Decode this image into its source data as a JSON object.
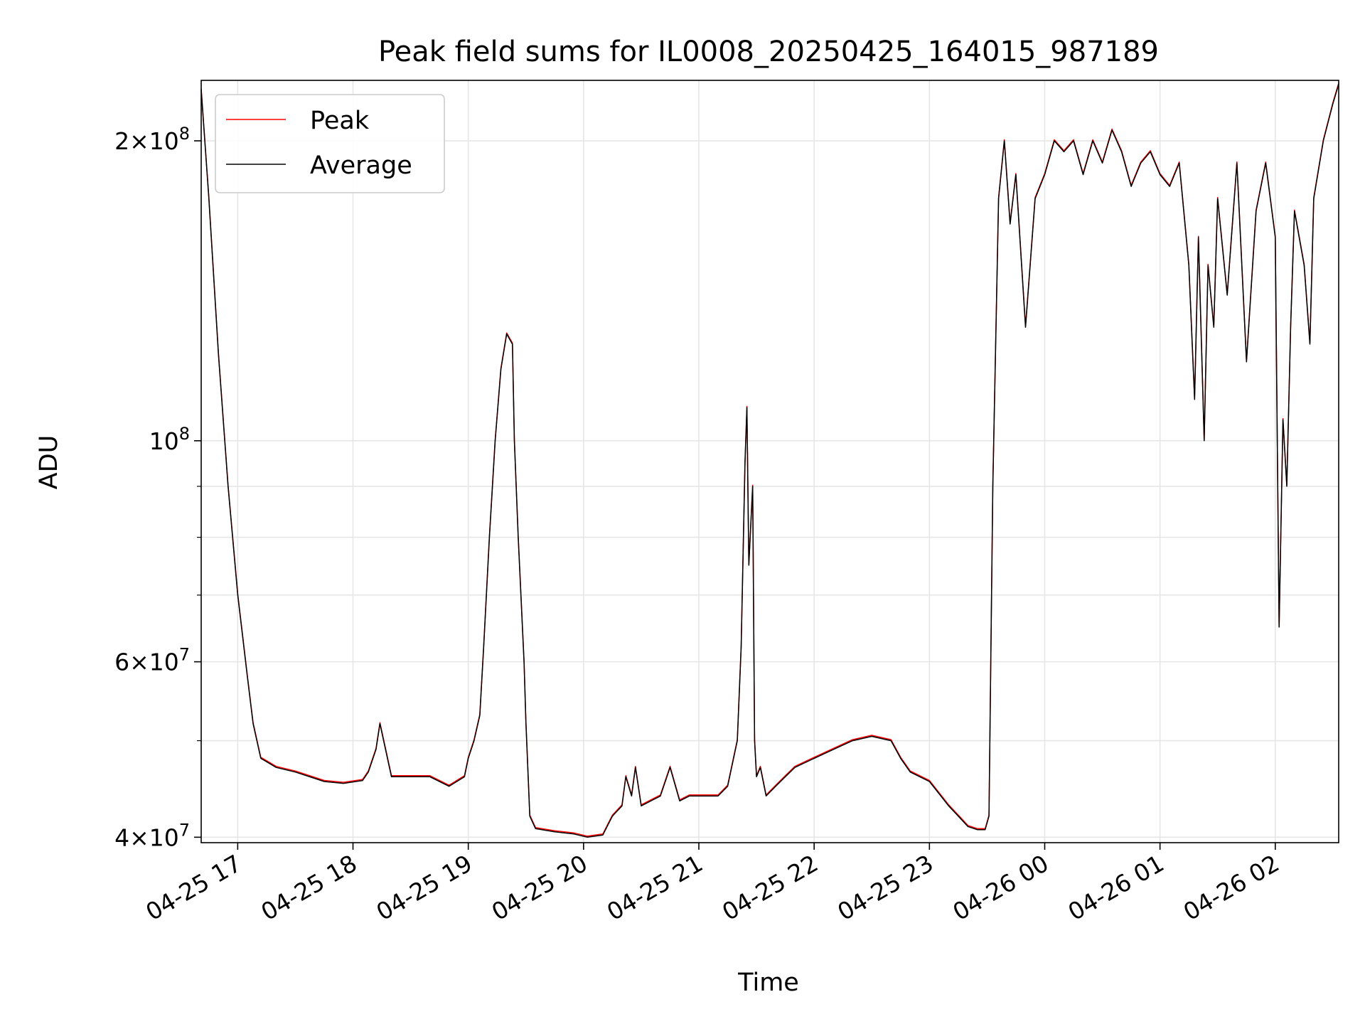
{
  "chart_data": {
    "type": "line",
    "title": "Peak field sums for IL0008_20250425_164015_987189",
    "xlabel": "Time",
    "ylabel": "ADU",
    "y_scale": "log",
    "ylim": [
      39500000,
      230000000
    ],
    "xlim": [
      "2025-04-25 16:41",
      "2025-04-26 02:33"
    ],
    "grid": true,
    "legend_position": "upper-left",
    "x_ticks": [
      {
        "t": "2025-04-25 17:00",
        "label": "04-25 17"
      },
      {
        "t": "2025-04-25 18:00",
        "label": "04-25 18"
      },
      {
        "t": "2025-04-25 19:00",
        "label": "04-25 19"
      },
      {
        "t": "2025-04-25 20:00",
        "label": "04-25 20"
      },
      {
        "t": "2025-04-25 21:00",
        "label": "04-25 21"
      },
      {
        "t": "2025-04-25 22:00",
        "label": "04-25 22"
      },
      {
        "t": "2025-04-25 23:00",
        "label": "04-25 23"
      },
      {
        "t": "2025-04-26 00:00",
        "label": "04-26 00"
      },
      {
        "t": "2025-04-26 01:00",
        "label": "04-26 01"
      },
      {
        "t": "2025-04-26 02:00",
        "label": "04-26 02"
      }
    ],
    "y_ticks": [
      {
        "value": 40000000,
        "mantissa": "4",
        "exp": "7"
      },
      {
        "value": 60000000,
        "mantissa": "6",
        "exp": "7"
      },
      {
        "value": 100000000,
        "mantissa": "",
        "exp": "8"
      },
      {
        "value": 200000000,
        "mantissa": "2",
        "exp": "8"
      }
    ],
    "y_minor_ticks": [
      50000000,
      70000000,
      80000000,
      90000000
    ],
    "series": [
      {
        "name": "Peak",
        "color": "#ff0000"
      },
      {
        "name": "Average",
        "color": "#000000"
      }
    ],
    "x": [
      "2025-04-25 16:41",
      "2025-04-25 16:45",
      "2025-04-25 16:50",
      "2025-04-25 16:55",
      "2025-04-25 17:00",
      "2025-04-25 17:05",
      "2025-04-25 17:08",
      "2025-04-25 17:12",
      "2025-04-25 17:20",
      "2025-04-25 17:30",
      "2025-04-25 17:45",
      "2025-04-25 17:55",
      "2025-04-25 18:05",
      "2025-04-25 18:08",
      "2025-04-25 18:12",
      "2025-04-25 18:14",
      "2025-04-25 18:20",
      "2025-04-25 18:30",
      "2025-04-25 18:40",
      "2025-04-25 18:50",
      "2025-04-25 18:58",
      "2025-04-25 19:00",
      "2025-04-25 19:03",
      "2025-04-25 19:06",
      "2025-04-25 19:08",
      "2025-04-25 19:11",
      "2025-04-25 19:14",
      "2025-04-25 19:17",
      "2025-04-25 19:20",
      "2025-04-25 19:23",
      "2025-04-25 19:24",
      "2025-04-25 19:26",
      "2025-04-25 19:29",
      "2025-04-25 19:30",
      "2025-04-25 19:32",
      "2025-04-25 19:35",
      "2025-04-25 19:45",
      "2025-04-25 19:55",
      "2025-04-25 20:02",
      "2025-04-25 20:10",
      "2025-04-25 20:15",
      "2025-04-25 20:20",
      "2025-04-25 20:22",
      "2025-04-25 20:25",
      "2025-04-25 20:27",
      "2025-04-25 20:30",
      "2025-04-25 20:35",
      "2025-04-25 20:40",
      "2025-04-25 20:45",
      "2025-04-25 20:50",
      "2025-04-25 20:55",
      "2025-04-25 21:00",
      "2025-04-25 21:10",
      "2025-04-25 21:15",
      "2025-04-25 21:20",
      "2025-04-25 21:22",
      "2025-04-25 21:24",
      "2025-04-25 21:25",
      "2025-04-25 21:26",
      "2025-04-25 21:28",
      "2025-04-25 21:29",
      "2025-04-25 21:30",
      "2025-04-25 21:32",
      "2025-04-25 21:35",
      "2025-04-25 21:40",
      "2025-04-25 21:45",
      "2025-04-25 21:50",
      "2025-04-25 22:00",
      "2025-04-25 22:10",
      "2025-04-25 22:20",
      "2025-04-25 22:30",
      "2025-04-25 22:40",
      "2025-04-25 22:45",
      "2025-04-25 22:50",
      "2025-04-25 23:00",
      "2025-04-25 23:10",
      "2025-04-25 23:15",
      "2025-04-25 23:20",
      "2025-04-25 23:25",
      "2025-04-25 23:29",
      "2025-04-25 23:31",
      "2025-04-25 23:33",
      "2025-04-25 23:36",
      "2025-04-25 23:39",
      "2025-04-25 23:42",
      "2025-04-25 23:45",
      "2025-04-25 23:50",
      "2025-04-25 23:55",
      "2025-04-26 00:00",
      "2025-04-26 00:05",
      "2025-04-26 00:10",
      "2025-04-26 00:15",
      "2025-04-26 00:20",
      "2025-04-26 00:25",
      "2025-04-26 00:30",
      "2025-04-26 00:35",
      "2025-04-26 00:40",
      "2025-04-26 00:45",
      "2025-04-26 00:50",
      "2025-04-26 00:55",
      "2025-04-26 01:00",
      "2025-04-26 01:05",
      "2025-04-26 01:10",
      "2025-04-26 01:15",
      "2025-04-26 01:18",
      "2025-04-26 01:20",
      "2025-04-26 01:23",
      "2025-04-26 01:25",
      "2025-04-26 01:28",
      "2025-04-26 01:30",
      "2025-04-26 01:35",
      "2025-04-26 01:40",
      "2025-04-26 01:45",
      "2025-04-26 01:50",
      "2025-04-26 01:55",
      "2025-04-26 02:00",
      "2025-04-26 02:02",
      "2025-04-26 02:04",
      "2025-04-26 02:06",
      "2025-04-26 02:08",
      "2025-04-26 02:10",
      "2025-04-26 02:15",
      "2025-04-26 02:18",
      "2025-04-26 02:20",
      "2025-04-26 02:25",
      "2025-04-26 02:30",
      "2025-04-26 02:33"
    ],
    "values": [
      225000000,
      175000000,
      122000000,
      90000000,
      70000000,
      58000000,
      52000000,
      48000000,
      47000000,
      46500000,
      45500000,
      45300000,
      45600000,
      46500000,
      49000000,
      52000000,
      46000000,
      46000000,
      46000000,
      45000000,
      46000000,
      48000000,
      50000000,
      53000000,
      62000000,
      80000000,
      100000000,
      118000000,
      128000000,
      125000000,
      100000000,
      80000000,
      60000000,
      52000000,
      42000000,
      40800000,
      40500000,
      40300000,
      40000000,
      40200000,
      42000000,
      43000000,
      46000000,
      44000000,
      47000000,
      43000000,
      43500000,
      44000000,
      47000000,
      43500000,
      44000000,
      44000000,
      44000000,
      45000000,
      50000000,
      62000000,
      95000000,
      108000000,
      75000000,
      90000000,
      50000000,
      46000000,
      47000000,
      44000000,
      45000000,
      46000000,
      47000000,
      48000000,
      49000000,
      50000000,
      50500000,
      50000000,
      48000000,
      46500000,
      45500000,
      43000000,
      42000000,
      41000000,
      40700000,
      40700000,
      42000000,
      90000000,
      175000000,
      200000000,
      165000000,
      185000000,
      130000000,
      175000000,
      185000000,
      200000000,
      195000000,
      200000000,
      185000000,
      200000000,
      190000000,
      205000000,
      195000000,
      180000000,
      190000000,
      195000000,
      185000000,
      180000000,
      190000000,
      150000000,
      110000000,
      160000000,
      100000000,
      150000000,
      130000000,
      175000000,
      140000000,
      190000000,
      120000000,
      170000000,
      190000000,
      160000000,
      65000000,
      105000000,
      90000000,
      130000000,
      170000000,
      150000000,
      125000000,
      175000000,
      200000000,
      218000000,
      228000000
    ]
  }
}
